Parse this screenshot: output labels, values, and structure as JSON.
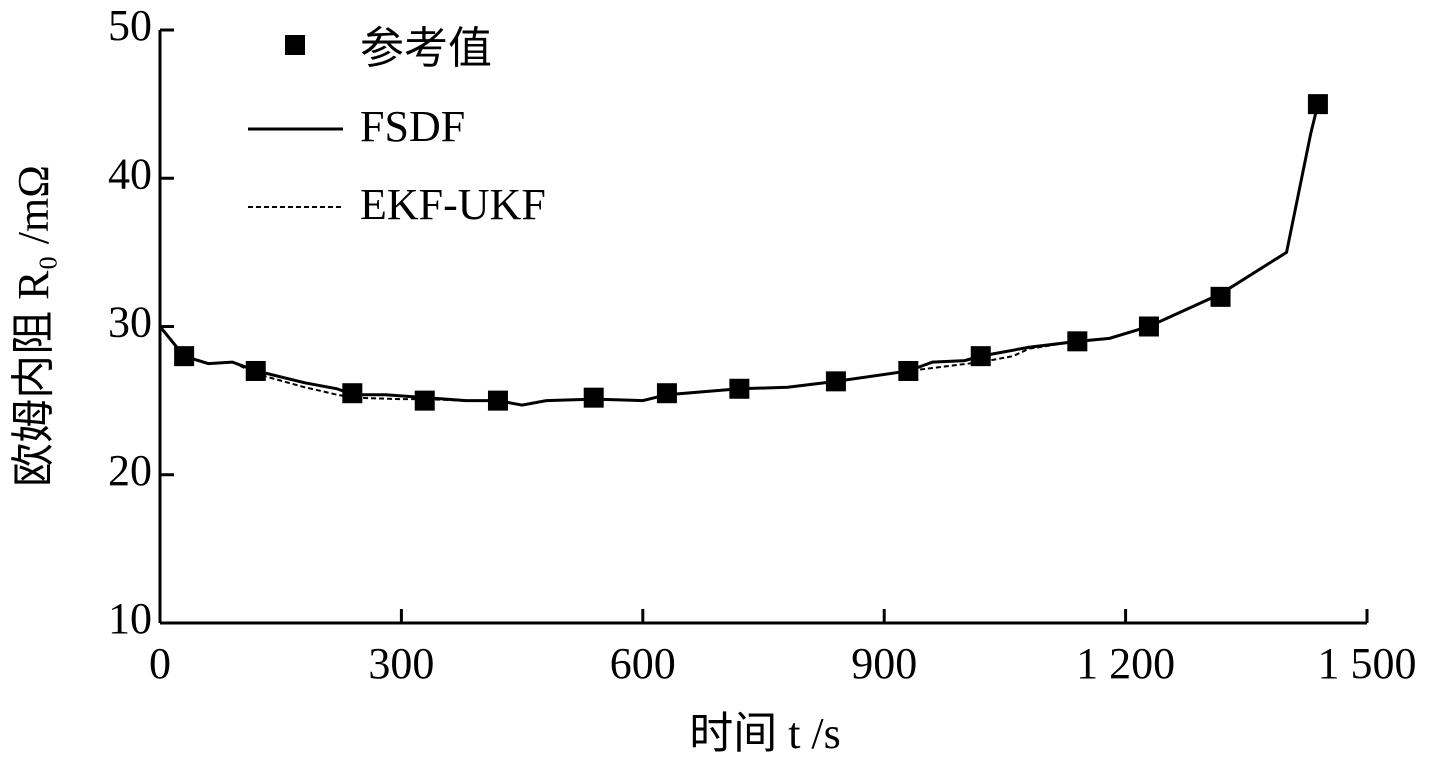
{
  "chart_data": {
    "type": "line",
    "xlabel": "时间 t /s",
    "ylabel": "欧姆内阻 R₀ /mΩ",
    "xlim": [
      0,
      1500
    ],
    "ylim": [
      10,
      50
    ],
    "xticks": [
      0,
      300,
      600,
      900,
      {
        "value": 1200,
        "label": "1 200"
      },
      {
        "value": 1500,
        "label": "1 500"
      }
    ],
    "yticks": [
      10,
      20,
      30,
      40,
      50
    ],
    "legend": "upper left",
    "series": [
      {
        "name": "参考值",
        "color": "#000000",
        "style": "markers",
        "x": [
          30,
          119,
          239,
          329,
          420,
          539,
          630,
          720,
          840,
          930,
          1020,
          1140,
          1229,
          1318,
          1439
        ],
        "values": [
          28.0,
          27.0,
          25.5,
          25.0,
          25.0,
          25.2,
          25.5,
          25.8,
          26.3,
          27.0,
          28.0,
          29.0,
          30.0,
          32.0,
          45.0
        ]
      },
      {
        "name": "FSDF",
        "color": "#000000",
        "style": "solid",
        "x": [
          0,
          30,
          60,
          90,
          120,
          180,
          220,
          240,
          280,
          330,
          380,
          420,
          450,
          480,
          540,
          600,
          630,
          720,
          780,
          840,
          930,
          960,
          1000,
          1020,
          1080,
          1140,
          1180,
          1229,
          1318,
          1400,
          1430,
          1439
        ],
        "values": [
          30.0,
          28.0,
          27.5,
          27.6,
          27.0,
          26.2,
          25.8,
          25.4,
          25.4,
          25.2,
          25.0,
          25.0,
          24.7,
          25.0,
          25.1,
          25.0,
          25.4,
          25.8,
          25.9,
          26.3,
          27.0,
          27.6,
          27.7,
          28.0,
          28.6,
          29.0,
          29.2,
          30.0,
          32.2,
          35.0,
          43.0,
          45.0
        ]
      },
      {
        "name": "EKF-UKF",
        "color": "#000000",
        "style": "dashed",
        "x": [
          0,
          30,
          60,
          90,
          120,
          180,
          220,
          240,
          300,
          330,
          380,
          420,
          450,
          480,
          540,
          600,
          630,
          720,
          780,
          840,
          930,
          960,
          1020,
          1060,
          1080,
          1140,
          1180,
          1229,
          1318,
          1400,
          1430,
          1439
        ],
        "values": [
          30.0,
          28.0,
          27.5,
          27.6,
          26.8,
          25.9,
          25.4,
          25.2,
          25.1,
          25.1,
          25.0,
          25.0,
          24.7,
          25.0,
          25.1,
          25.0,
          25.4,
          25.8,
          25.9,
          26.3,
          27.0,
          27.2,
          27.6,
          28.0,
          28.5,
          29.0,
          29.2,
          30.0,
          32.2,
          35.0,
          43.0,
          45.0
        ]
      }
    ]
  }
}
